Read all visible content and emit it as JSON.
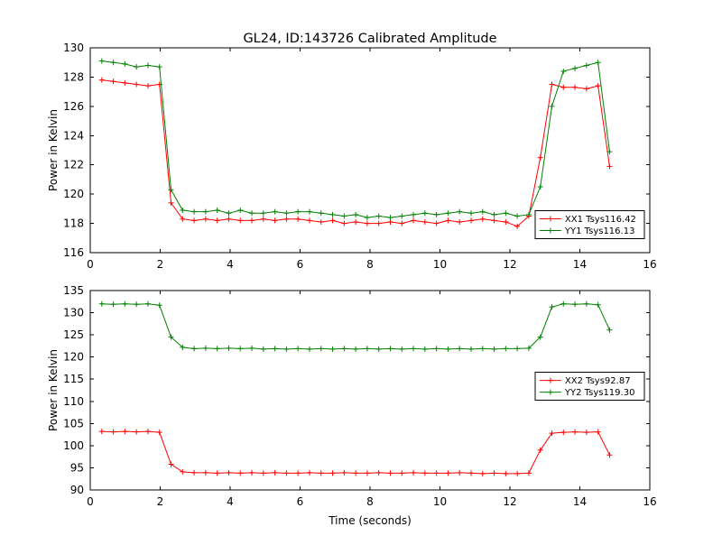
{
  "figure": {
    "title": "GL24, ID:143726 Calibrated Amplitude"
  },
  "chart_data": [
    {
      "type": "line",
      "title": "GL24, ID:143726 Calibrated Amplitude",
      "xlabel": "",
      "ylabel": "Power in Kelvin",
      "xlim": [
        0,
        16
      ],
      "ylim": [
        116,
        130
      ],
      "xticks": [
        0,
        2,
        4,
        6,
        8,
        10,
        12,
        14,
        16
      ],
      "yticks": [
        116,
        118,
        120,
        122,
        124,
        126,
        128,
        130
      ],
      "grid": false,
      "marker": "+",
      "legend_pos": {
        "x": 0.795,
        "y": 0.795
      },
      "x": [
        0.33,
        0.66,
        0.99,
        1.32,
        1.65,
        1.98,
        2.31,
        2.64,
        2.97,
        3.3,
        3.63,
        3.96,
        4.29,
        4.62,
        4.95,
        5.28,
        5.61,
        5.94,
        6.27,
        6.6,
        6.93,
        7.26,
        7.59,
        7.92,
        8.25,
        8.58,
        8.91,
        9.24,
        9.57,
        9.9,
        10.23,
        10.56,
        10.89,
        11.22,
        11.55,
        11.88,
        12.21,
        12.54,
        12.87,
        13.2,
        13.53,
        13.86,
        14.19,
        14.52,
        14.85
      ],
      "series": [
        {
          "name": "XX1 Tsys116.42",
          "color": "#ff0000",
          "values": [
            127.8,
            127.7,
            127.6,
            127.5,
            127.4,
            127.5,
            119.4,
            118.3,
            118.2,
            118.3,
            118.2,
            118.3,
            118.2,
            118.2,
            118.3,
            118.2,
            118.3,
            118.3,
            118.2,
            118.1,
            118.2,
            118.0,
            118.1,
            118.0,
            118.0,
            118.1,
            118.0,
            118.2,
            118.1,
            118.0,
            118.2,
            118.1,
            118.2,
            118.3,
            118.2,
            118.1,
            117.8,
            118.5,
            122.5,
            127.5,
            127.3,
            127.3,
            127.2,
            127.4,
            121.9
          ]
        },
        {
          "name": "YY1 Tsys116.13",
          "color": "#008000",
          "values": [
            129.1,
            129.0,
            128.9,
            128.7,
            128.8,
            128.7,
            120.3,
            118.9,
            118.8,
            118.8,
            118.9,
            118.7,
            118.9,
            118.7,
            118.7,
            118.8,
            118.7,
            118.8,
            118.8,
            118.7,
            118.6,
            118.5,
            118.6,
            118.4,
            118.5,
            118.4,
            118.5,
            118.6,
            118.7,
            118.6,
            118.7,
            118.8,
            118.7,
            118.8,
            118.6,
            118.7,
            118.5,
            118.6,
            120.5,
            126.0,
            128.4,
            128.6,
            128.8,
            129.0,
            122.9
          ]
        }
      ]
    },
    {
      "type": "line",
      "title": "",
      "xlabel": "Time (seconds)",
      "ylabel": "Power in Kelvin",
      "xlim": [
        0,
        16
      ],
      "ylim": [
        90,
        135
      ],
      "xticks": [
        0,
        2,
        4,
        6,
        8,
        10,
        12,
        14,
        16
      ],
      "yticks": [
        90,
        95,
        100,
        105,
        110,
        115,
        120,
        125,
        130,
        135
      ],
      "grid": false,
      "marker": "+",
      "legend_pos": {
        "x": 0.795,
        "y": 0.41
      },
      "x": [
        0.33,
        0.66,
        0.99,
        1.32,
        1.65,
        1.98,
        2.31,
        2.64,
        2.97,
        3.3,
        3.63,
        3.96,
        4.29,
        4.62,
        4.95,
        5.28,
        5.61,
        5.94,
        6.27,
        6.6,
        6.93,
        7.26,
        7.59,
        7.92,
        8.25,
        8.58,
        8.91,
        9.24,
        9.57,
        9.9,
        10.23,
        10.56,
        10.89,
        11.22,
        11.55,
        11.88,
        12.21,
        12.54,
        12.87,
        13.2,
        13.53,
        13.86,
        14.19,
        14.52,
        14.85
      ],
      "series": [
        {
          "name": "XX2 Tsys92.87",
          "color": "#ff0000",
          "values": [
            103.2,
            103.1,
            103.2,
            103.1,
            103.2,
            103.0,
            95.8,
            94.1,
            93.9,
            93.9,
            93.8,
            93.9,
            93.8,
            93.9,
            93.8,
            93.9,
            93.8,
            93.8,
            93.9,
            93.8,
            93.8,
            93.9,
            93.8,
            93.8,
            93.9,
            93.8,
            93.8,
            93.9,
            93.8,
            93.8,
            93.8,
            93.9,
            93.8,
            93.7,
            93.8,
            93.7,
            93.7,
            93.8,
            99.0,
            102.8,
            103.0,
            103.1,
            103.0,
            103.1,
            97.9
          ]
        },
        {
          "name": "YY2 Tsys119.30",
          "color": "#008000",
          "values": [
            132.0,
            131.9,
            132.0,
            131.9,
            132.0,
            131.7,
            124.5,
            122.2,
            121.9,
            122.0,
            121.9,
            122.0,
            121.9,
            122.0,
            121.8,
            121.9,
            121.8,
            121.9,
            121.8,
            121.9,
            121.8,
            121.9,
            121.8,
            121.9,
            121.8,
            121.9,
            121.8,
            121.9,
            121.8,
            121.9,
            121.8,
            121.9,
            121.8,
            121.9,
            121.8,
            121.9,
            121.9,
            122.0,
            124.5,
            131.3,
            132.0,
            131.9,
            132.0,
            131.8,
            126.1
          ]
        }
      ]
    }
  ]
}
